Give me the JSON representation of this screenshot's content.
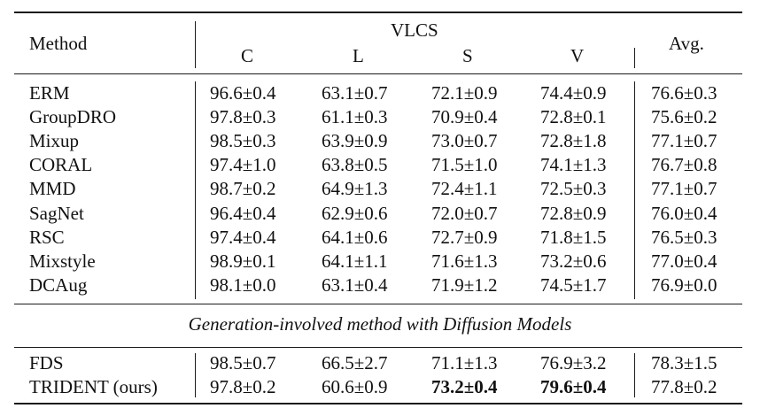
{
  "table": {
    "header": {
      "method": "Method",
      "group": "VLCS",
      "domains": [
        "C",
        "L",
        "S",
        "V"
      ],
      "avg": "Avg."
    },
    "rows": [
      {
        "method": "ERM",
        "c": "96.6±0.4",
        "l": "63.1±0.7",
        "s": "72.1±0.9",
        "v": "74.4±0.9",
        "avg": "76.6±0.3"
      },
      {
        "method": "GroupDRO",
        "c": "97.8±0.3",
        "l": "61.1±0.3",
        "s": "70.9±0.4",
        "v": "72.8±0.1",
        "avg": "75.6±0.2"
      },
      {
        "method": "Mixup",
        "c": "98.5±0.3",
        "l": "63.9±0.9",
        "s": "73.0±0.7",
        "v": "72.8±1.8",
        "avg": "77.1±0.7"
      },
      {
        "method": "CORAL",
        "c": "97.4±1.0",
        "l": "63.8±0.5",
        "s": "71.5±1.0",
        "v": "74.1±1.3",
        "avg": "76.7±0.8"
      },
      {
        "method": "MMD",
        "c": "98.7±0.2",
        "l": "64.9±1.3",
        "s": "72.4±1.1",
        "v": "72.5±0.3",
        "avg": "77.1±0.7"
      },
      {
        "method": "SagNet",
        "c": "96.4±0.4",
        "l": "62.9±0.6",
        "s": "72.0±0.7",
        "v": "72.8±0.9",
        "avg": "76.0±0.4"
      },
      {
        "method": "RSC",
        "c": "97.4±0.4",
        "l": "64.1±0.6",
        "s": "72.7±0.9",
        "v": "71.8±1.5",
        "avg": "76.5±0.3"
      },
      {
        "method": "Mixstyle",
        "c": "98.9±0.1",
        "l": "64.1±1.1",
        "s": "71.6±1.3",
        "v": "73.2±0.6",
        "avg": "77.0±0.4"
      },
      {
        "method": "DCAug",
        "c": "98.1±0.0",
        "l": "63.1±0.4",
        "s": "71.9±1.2",
        "v": "74.5±1.7",
        "avg": "76.9±0.0"
      }
    ],
    "section_title": "Generation-involved method with Diffusion Models",
    "gen_rows": [
      {
        "method": "FDS",
        "c": "98.5±0.7",
        "l": "66.5±2.7",
        "s": "71.1±1.3",
        "v": "76.9±3.2",
        "avg": "78.3±1.5"
      },
      {
        "method": "TRIDENT (ours)",
        "c": "97.8±0.2",
        "l": "60.6±0.9",
        "s": "73.2±0.4",
        "v": "79.6±0.4",
        "avg": "77.8±0.2"
      }
    ]
  }
}
